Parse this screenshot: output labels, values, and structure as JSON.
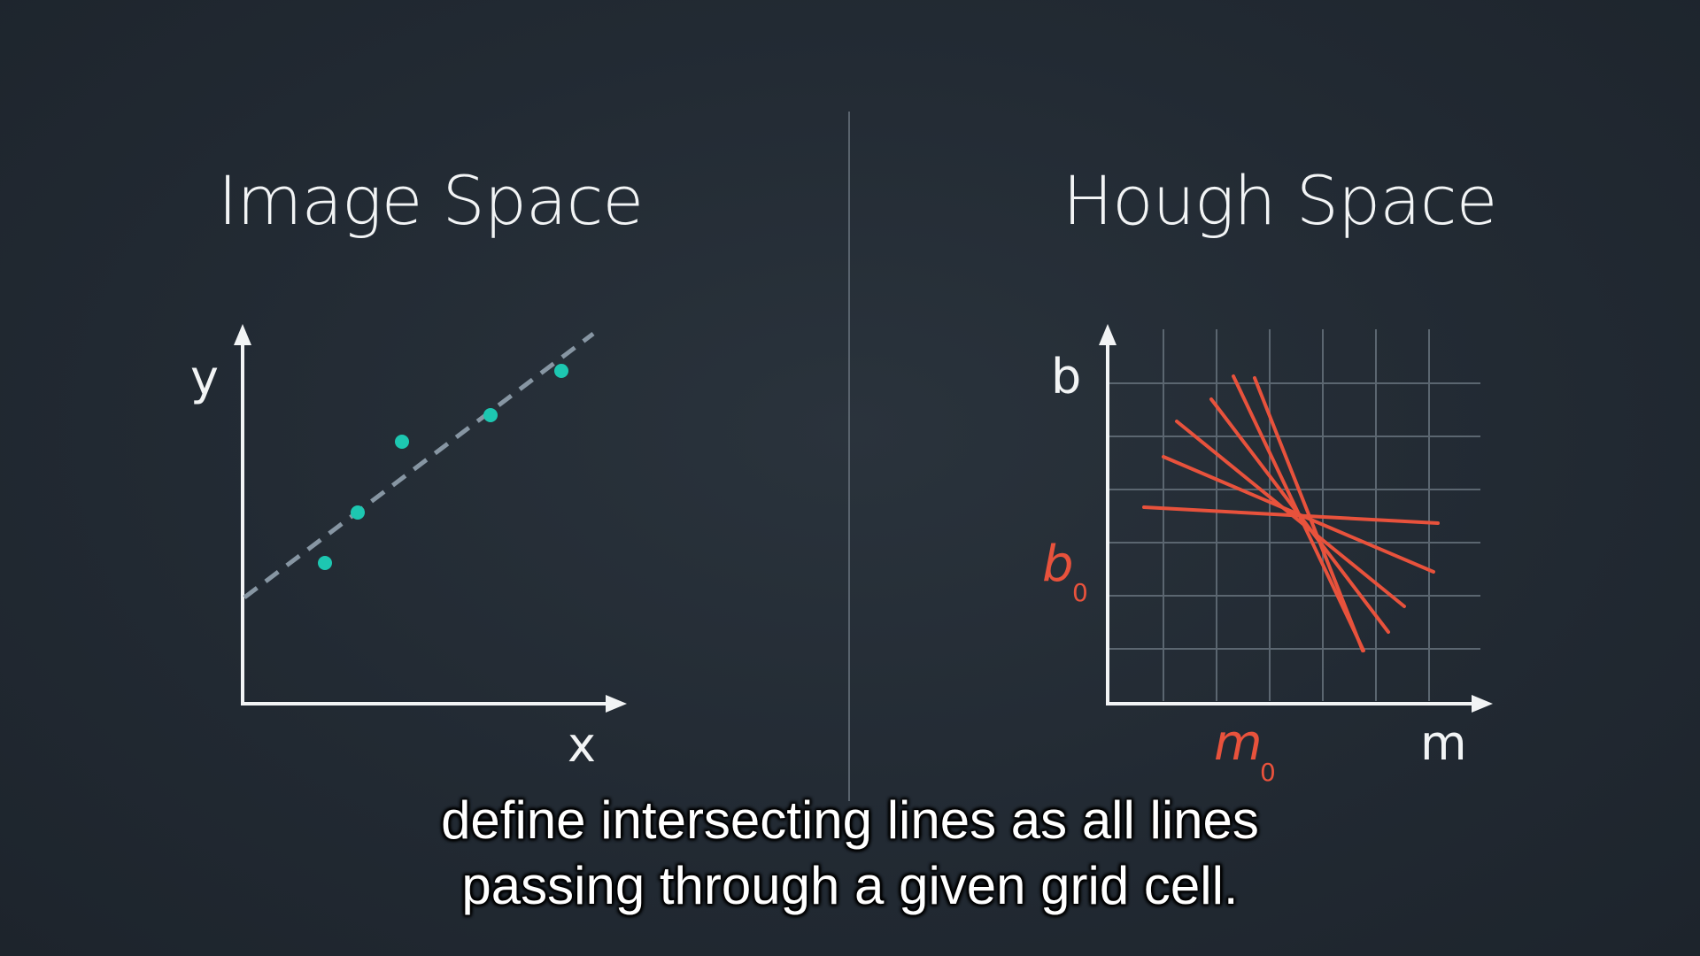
{
  "left_panel": {
    "title": "Image Space",
    "x_label": "x",
    "y_label": "y"
  },
  "right_panel": {
    "title": "Hough Space",
    "x_label": "m",
    "y_label": "b",
    "b0_label": "b",
    "b0_sub": "0",
    "m0_label": "m",
    "m0_sub": "0"
  },
  "subtitle": {
    "line1": "define intersecting lines as all lines",
    "line2": "passing through a given grid cell."
  },
  "colors": {
    "background": "#222a33",
    "points": "#1dc7b1",
    "hough_lines": "#e8523c",
    "axes": "#f2f4f5",
    "grid": "#5b6670",
    "dashed_line": "#8796a3"
  }
}
